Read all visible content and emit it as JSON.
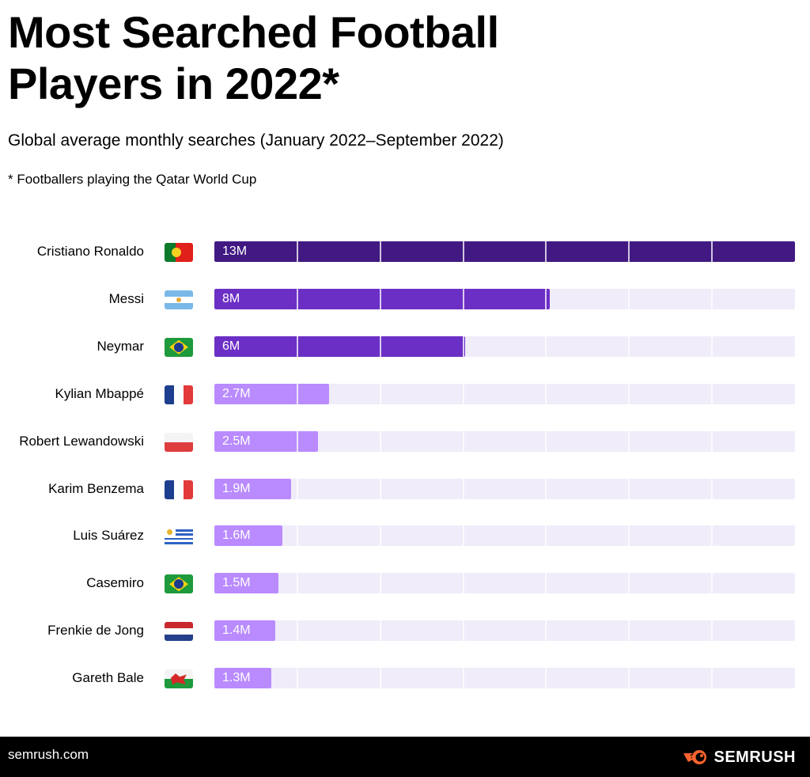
{
  "chart_data": {
    "type": "bar",
    "orientation": "horizontal",
    "title": "Most Searched Football Players in 2022*",
    "subtitle": "Global average monthly searches (January 2022–September 2022)",
    "note": "* Footballers playing the Qatar World Cup",
    "xlabel": "",
    "ylabel": "",
    "grid": false,
    "legend": "none",
    "categories": [
      "Cristiano Ronaldo",
      "Messi",
      "Neymar",
      "Kylian Mbappé",
      "Robert Lewandowski",
      "Karim Benzema",
      "Luis Suárez",
      "Casemiro",
      "Frenkie de Jong",
      "Gareth Bale"
    ],
    "countries": [
      "Portugal",
      "Argentina",
      "Brazil",
      "France",
      "Poland",
      "France",
      "Uruguay",
      "Brazil",
      "Netherlands",
      "Wales"
    ],
    "values": [
      13,
      8,
      6,
      2.7,
      2.5,
      1.9,
      1.6,
      1.5,
      1.4,
      1.3
    ],
    "value_unit": "M",
    "labels": [
      "13M",
      "8M",
      "6M",
      "2.7M",
      "2.5M",
      "1.9M",
      "1.6M",
      "1.5M",
      "1.4M",
      "1.3M"
    ],
    "fill_fraction": [
      1.0,
      0.577,
      0.432,
      0.198,
      0.179,
      0.132,
      0.117,
      0.11,
      0.105,
      0.098
    ],
    "segments": 7,
    "colors": {
      "top": "#421983",
      "mid": "#6c2fc6",
      "low": "#b98bff",
      "track": "#f0ecf9"
    },
    "color_tiers": [
      "top",
      "mid",
      "mid",
      "low",
      "low",
      "low",
      "low",
      "low",
      "low",
      "low"
    ]
  },
  "footer": {
    "site": "semrush.com",
    "brand": "SEMRUSH",
    "brand_color": "#ff642d"
  }
}
